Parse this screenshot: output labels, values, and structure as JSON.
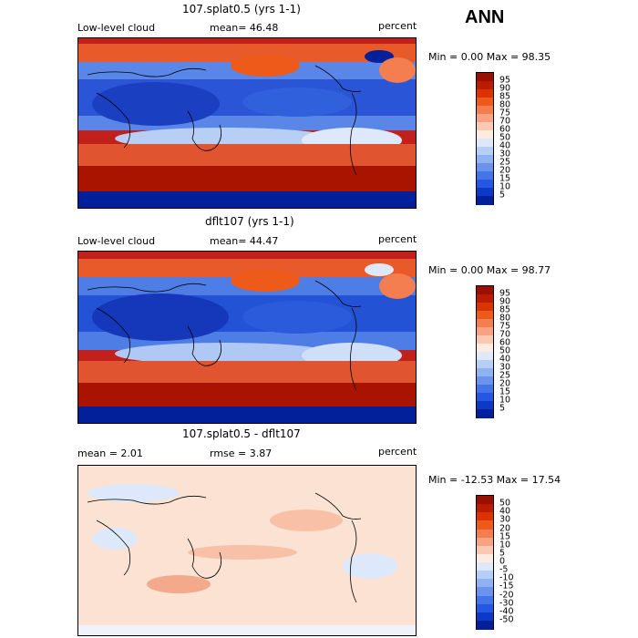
{
  "page_title": "ANN",
  "panels": [
    {
      "title": "107.splat0.5 (yrs 1-1)",
      "left_label": "Low-level cloud",
      "center_label": "mean=  46.48",
      "right_label": "percent",
      "minmax": "Min =   0.00 Max =  98.35"
    },
    {
      "title": "dflt107 (yrs 1-1)",
      "left_label": "Low-level cloud",
      "center_label": "mean=  44.47",
      "right_label": "percent",
      "minmax": "Min =   0.00 Max =  98.77"
    },
    {
      "title": "107.splat0.5 - dflt107",
      "left_label": "mean =   2.01",
      "center_label": "rmse =   3.87",
      "right_label": "percent",
      "minmax": "Min = -12.53 Max =  17.54"
    }
  ],
  "colorbars": {
    "cloud": {
      "ticks": [
        "95",
        "90",
        "85",
        "80",
        "75",
        "70",
        "60",
        "50",
        "40",
        "30",
        "25",
        "20",
        "15",
        "10",
        "5"
      ],
      "colors": [
        "#9a1000",
        "#bb1b00",
        "#d93300",
        "#ee5a1a",
        "#f47e4f",
        "#f8a283",
        "#fbc8b1",
        "#fdebe0",
        "#dde9fa",
        "#b6cff7",
        "#8fb2f3",
        "#6b93ee",
        "#4474ea",
        "#2457e2",
        "#0c3ac6",
        "#01209a"
      ]
    },
    "diff": {
      "ticks": [
        "50",
        "40",
        "30",
        "20",
        "15",
        "10",
        "5",
        "0",
        "-5",
        "-10",
        "-15",
        "-20",
        "-30",
        "-40",
        "-50"
      ],
      "colors": [
        "#9a1000",
        "#bb1b00",
        "#d93300",
        "#ee5a1a",
        "#f47e4f",
        "#f8a283",
        "#fbc8b1",
        "#fdebe0",
        "#dde9fa",
        "#b6cff7",
        "#8fb2f3",
        "#6b93ee",
        "#4474ea",
        "#2457e2",
        "#0c3ac6",
        "#01209a"
      ]
    }
  },
  "chart_data": [
    {
      "type": "heatmap",
      "title": "107.splat0.5 (yrs 1-1)",
      "variable": "Low-level cloud",
      "units": "percent",
      "mean": 46.48,
      "min": 0.0,
      "max": 98.35,
      "contour_levels": [
        5,
        10,
        15,
        20,
        25,
        30,
        40,
        50,
        60,
        70,
        75,
        80,
        85,
        90,
        95
      ]
    },
    {
      "type": "heatmap",
      "title": "dflt107 (yrs 1-1)",
      "variable": "Low-level cloud",
      "units": "percent",
      "mean": 44.47,
      "min": 0.0,
      "max": 98.77,
      "contour_levels": [
        5,
        10,
        15,
        20,
        25,
        30,
        40,
        50,
        60,
        70,
        75,
        80,
        85,
        90,
        95
      ]
    },
    {
      "type": "heatmap",
      "title": "107.splat0.5 - dflt107",
      "units": "percent",
      "mean": 2.01,
      "rmse": 3.87,
      "min": -12.53,
      "max": 17.54,
      "contour_levels": [
        -50,
        -40,
        -30,
        -20,
        -15,
        -10,
        -5,
        0,
        5,
        10,
        15,
        20,
        30,
        40,
        50
      ]
    }
  ]
}
